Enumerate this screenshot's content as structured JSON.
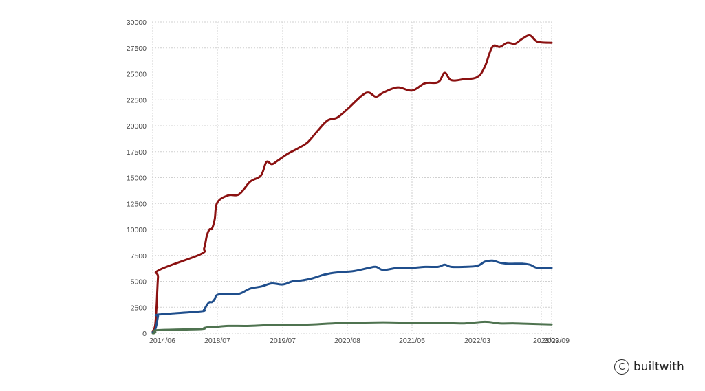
{
  "chart_data": {
    "type": "line",
    "title": "",
    "xlabel": "",
    "ylabel": "",
    "ylim": [
      0,
      30000
    ],
    "y_ticks": [
      0,
      2500,
      5000,
      7500,
      10000,
      12500,
      15000,
      17500,
      20000,
      22500,
      25000,
      27500,
      30000
    ],
    "y_tick_labels": [
      "0",
      "2500",
      "5000",
      "7500",
      "10000",
      "12500",
      "15000",
      "17500",
      "20000",
      "22500",
      "25000",
      "27500",
      "30000"
    ],
    "x_ticks": [
      {
        "label": "2014/06",
        "date": "2014-06"
      },
      {
        "label": "2018/07",
        "date": "2018-07"
      },
      {
        "label": "2019/07",
        "date": "2019-07"
      },
      {
        "label": "2020/08",
        "date": "2020-08"
      },
      {
        "label": "2021/05",
        "date": "2021-05"
      },
      {
        "label": "2022/03",
        "date": "2022-03"
      },
      {
        "label": "2023/09",
        "date": "2023-08"
      },
      {
        "label": "2023/09",
        "date": "2023-09"
      }
    ],
    "grid": true,
    "legend": "none",
    "series": [
      {
        "color": "#8b1111",
        "points": [
          [
            "2014-06",
            200
          ],
          [
            "2014-07",
            400
          ],
          [
            "2014-08",
            900
          ],
          [
            "2014-09",
            2800
          ],
          [
            "2014-10",
            5400
          ],
          [
            "2014-11",
            6100
          ],
          [
            "2017-06",
            7600
          ],
          [
            "2017-09",
            8200
          ],
          [
            "2017-11",
            9400
          ],
          [
            "2018-01",
            10000
          ],
          [
            "2018-03",
            10100
          ],
          [
            "2018-05",
            11000
          ],
          [
            "2018-07",
            12600
          ],
          [
            "2018-09",
            13300
          ],
          [
            "2018-11",
            13400
          ],
          [
            "2019-01",
            14600
          ],
          [
            "2019-03",
            15200
          ],
          [
            "2019-04",
            16500
          ],
          [
            "2019-05",
            16300
          ],
          [
            "2019-06",
            16600
          ],
          [
            "2019-08",
            17300
          ],
          [
            "2019-10",
            17800
          ],
          [
            "2019-12",
            18400
          ],
          [
            "2020-02",
            19500
          ],
          [
            "2020-04",
            20500
          ],
          [
            "2020-06",
            20800
          ],
          [
            "2020-08",
            21600
          ],
          [
            "2020-10",
            22900
          ],
          [
            "2020-11",
            23200
          ],
          [
            "2020-12",
            22800
          ],
          [
            "2021-01",
            23200
          ],
          [
            "2021-03",
            23700
          ],
          [
            "2021-05",
            23400
          ],
          [
            "2021-07",
            24100
          ],
          [
            "2021-09",
            24200
          ],
          [
            "2021-10",
            25100
          ],
          [
            "2021-11",
            24400
          ],
          [
            "2022-01",
            24500
          ],
          [
            "2022-03",
            24700
          ],
          [
            "2022-05",
            25700
          ],
          [
            "2022-07",
            27600
          ],
          [
            "2022-09",
            27600
          ],
          [
            "2022-11",
            28000
          ],
          [
            "2023-01",
            27900
          ],
          [
            "2023-03",
            28400
          ],
          [
            "2023-05",
            28700
          ],
          [
            "2023-07",
            28100
          ],
          [
            "2023-09",
            28000
          ]
        ]
      },
      {
        "color": "#1f4e8c",
        "points": [
          [
            "2014-06",
            100
          ],
          [
            "2014-07",
            200
          ],
          [
            "2014-08",
            400
          ],
          [
            "2014-09",
            900
          ],
          [
            "2014-10",
            1600
          ],
          [
            "2014-11",
            1800
          ],
          [
            "2017-06",
            2100
          ],
          [
            "2017-09",
            2300
          ],
          [
            "2017-11",
            2700
          ],
          [
            "2018-01",
            3000
          ],
          [
            "2018-03",
            3000
          ],
          [
            "2018-05",
            3300
          ],
          [
            "2018-07",
            3700
          ],
          [
            "2018-09",
            3800
          ],
          [
            "2018-11",
            3800
          ],
          [
            "2019-01",
            4300
          ],
          [
            "2019-03",
            4500
          ],
          [
            "2019-05",
            4800
          ],
          [
            "2019-07",
            4700
          ],
          [
            "2019-09",
            5000
          ],
          [
            "2019-11",
            5100
          ],
          [
            "2020-01",
            5300
          ],
          [
            "2020-03",
            5600
          ],
          [
            "2020-05",
            5800
          ],
          [
            "2020-07",
            5900
          ],
          [
            "2020-09",
            6000
          ],
          [
            "2020-11",
            6300
          ],
          [
            "2020-12",
            6400
          ],
          [
            "2021-01",
            6100
          ],
          [
            "2021-03",
            6300
          ],
          [
            "2021-05",
            6300
          ],
          [
            "2021-07",
            6400
          ],
          [
            "2021-09",
            6400
          ],
          [
            "2021-10",
            6600
          ],
          [
            "2021-11",
            6400
          ],
          [
            "2022-01",
            6400
          ],
          [
            "2022-03",
            6500
          ],
          [
            "2022-05",
            6900
          ],
          [
            "2022-07",
            7000
          ],
          [
            "2022-09",
            6800
          ],
          [
            "2022-11",
            6700
          ],
          [
            "2023-01",
            6700
          ],
          [
            "2023-03",
            6700
          ],
          [
            "2023-05",
            6600
          ],
          [
            "2023-07",
            6300
          ],
          [
            "2023-09",
            6300
          ]
        ]
      },
      {
        "color": "#4f7350",
        "points": [
          [
            "2014-06",
            0
          ],
          [
            "2014-07",
            0
          ],
          [
            "2014-08",
            100
          ],
          [
            "2014-10",
            300
          ],
          [
            "2017-06",
            400
          ],
          [
            "2017-09",
            500
          ],
          [
            "2018-01",
            600
          ],
          [
            "2018-05",
            600
          ],
          [
            "2018-09",
            700
          ],
          [
            "2019-01",
            700
          ],
          [
            "2019-05",
            800
          ],
          [
            "2019-09",
            800
          ],
          [
            "2020-01",
            850
          ],
          [
            "2020-05",
            950
          ],
          [
            "2020-09",
            1000
          ],
          [
            "2021-01",
            1050
          ],
          [
            "2021-05",
            1000
          ],
          [
            "2021-09",
            1000
          ],
          [
            "2022-01",
            950
          ],
          [
            "2022-05",
            1100
          ],
          [
            "2022-09",
            950
          ],
          [
            "2023-01",
            950
          ],
          [
            "2023-05",
            900
          ],
          [
            "2023-09",
            850
          ]
        ]
      }
    ]
  },
  "watermark": {
    "symbol": "C",
    "text": "builtwith"
  }
}
